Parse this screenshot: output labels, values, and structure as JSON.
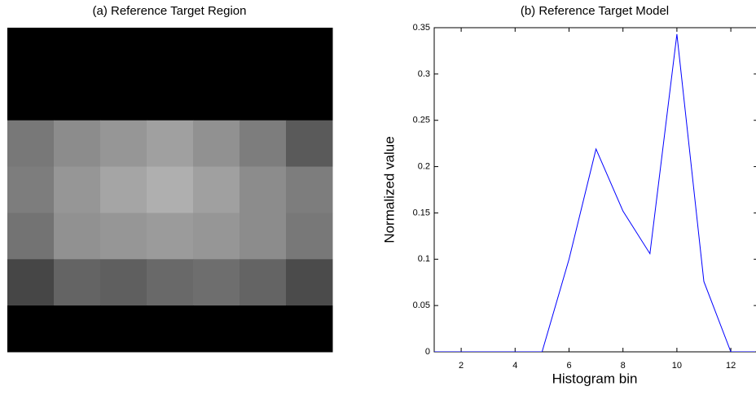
{
  "chart_data": [
    {
      "type": "heatmap",
      "title": "(a) Reference Target Region",
      "colormap": "gray",
      "values": [
        [
          0,
          0,
          0,
          0,
          0,
          0,
          0
        ],
        [
          0,
          0,
          0,
          0,
          0,
          0,
          0
        ],
        [
          120,
          140,
          150,
          160,
          145,
          125,
          90
        ],
        [
          125,
          150,
          165,
          175,
          160,
          140,
          125
        ],
        [
          115,
          145,
          150,
          155,
          150,
          140,
          120
        ],
        [
          70,
          100,
          95,
          105,
          110,
          100,
          75
        ],
        [
          0,
          0,
          0,
          0,
          0,
          0,
          0
        ]
      ]
    },
    {
      "type": "line",
      "title": "(b) Reference Target Model",
      "xlabel": "Histogram bin",
      "ylabel": "Normalized value",
      "x": [
        1,
        2,
        3,
        4,
        5,
        6,
        7,
        8,
        9,
        10,
        11,
        12,
        13
      ],
      "series": [
        {
          "color": "#0000ff",
          "values": [
            0,
            0,
            0,
            0,
            0,
            0.1,
            0.219,
            0.152,
            0.106,
            0.343,
            0.076,
            0,
            0
          ]
        }
      ],
      "xlim": [
        1,
        13
      ],
      "ylim": [
        0,
        0.35
      ],
      "xticks": [
        2,
        4,
        6,
        8,
        10,
        12
      ],
      "yticks": [
        0,
        0.05,
        0.1,
        0.15,
        0.2,
        0.25,
        0.3,
        0.35
      ]
    }
  ]
}
